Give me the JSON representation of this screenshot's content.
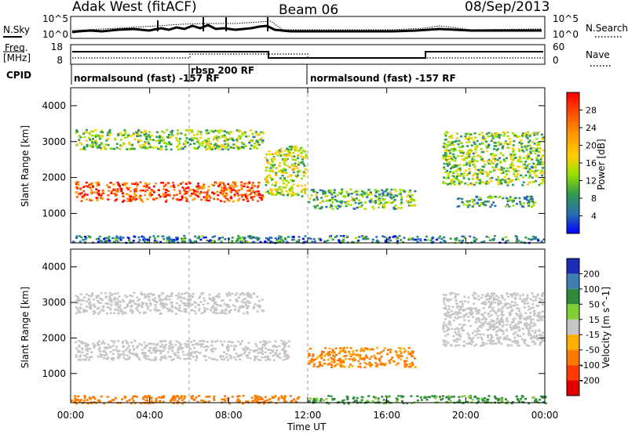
{
  "header": {
    "radar": "Adak West (fitACF)",
    "beam": "Beam 06",
    "date": "08/Sep/2013"
  },
  "nsky_panel": {
    "left_label": "N.Sky",
    "right_label": "N.Search",
    "left_ticks": [
      "10^5",
      "10^0"
    ],
    "right_ticks": [
      "10^5",
      "10^0"
    ]
  },
  "freq_panel": {
    "left_label_1": "Freq.",
    "left_label_2": "[MHz]",
    "right_label": "Nave",
    "left_ticks": [
      "18",
      "8"
    ],
    "right_ticks": [
      "60",
      "0"
    ]
  },
  "cpid_panel": {
    "label": "CPID",
    "segments": [
      {
        "text": "normalsound (fast) -157 RF"
      },
      {
        "text": "rbsp 200 RF"
      },
      {
        "text": "normalsound (fast) -157 RF"
      }
    ]
  },
  "axes": {
    "xlabel": "Time UT",
    "ylabel": "Slant Range [km]",
    "xticks": [
      "00:00",
      "04:00",
      "08:00",
      "12:00",
      "16:00",
      "20:00",
      "00:00"
    ],
    "yticks": [
      "1000",
      "2000",
      "3000",
      "4000"
    ]
  },
  "power_bar": {
    "label": "Power [dB]",
    "ticks": [
      "28",
      "24",
      "20",
      "16",
      "12",
      "8",
      "4"
    ],
    "colors": [
      "#ff0000",
      "#ff5000",
      "#ff9a00",
      "#ffcd00",
      "#9be000",
      "#2e9c4e",
      "#2a6fb0",
      "#0000ff"
    ]
  },
  "velocity_bar": {
    "label": "Velocity [m s^-1]",
    "ticks": [
      "200",
      "100",
      "50",
      "15",
      "-15",
      "-50",
      "-100",
      "-200"
    ],
    "colors": [
      "#1c2bb8",
      "#3f7fb4",
      "#2f8a3b",
      "#7fcf35",
      "#c6c6c6",
      "#ffae00",
      "#ff7a00",
      "#ff3a00",
      "#e00000"
    ]
  },
  "chart_data": [
    {
      "type": "heatmap",
      "title": "Power",
      "xlabel": "Time UT",
      "ylabel": "Slant Range [km]",
      "xlim": [
        "00:00",
        "24:00"
      ],
      "ylim": [
        180,
        4500
      ],
      "colorbar_label": "Power [dB]",
      "regions": [
        {
          "t_start": 0.2,
          "t_end": 9.7,
          "range_low": 1350,
          "range_high": 1900,
          "power_db": 26
        },
        {
          "t_start": 0.2,
          "t_end": 9.7,
          "range_low": 2800,
          "range_high": 3350,
          "power_db": 12
        },
        {
          "t_start": 9.8,
          "t_end": 11.9,
          "range_low": 1500,
          "range_high": 2900,
          "power_db": 14
        },
        {
          "t_start": 12.0,
          "t_end": 17.4,
          "range_low": 1150,
          "range_high": 1700,
          "power_db": 10
        },
        {
          "t_start": 18.8,
          "t_end": 23.9,
          "range_low": 1800,
          "range_high": 3300,
          "power_db": 12
        },
        {
          "t_start": 19.5,
          "t_end": 23.5,
          "range_low": 1200,
          "range_high": 1500,
          "power_db": 8
        },
        {
          "t_start": 0.0,
          "t_end": 24.0,
          "range_low": 200,
          "range_high": 400,
          "power_db": 6
        }
      ]
    },
    {
      "type": "heatmap",
      "title": "Velocity",
      "xlabel": "Time UT",
      "ylabel": "Slant Range [km]",
      "xlim": [
        "00:00",
        "24:00"
      ],
      "ylim": [
        180,
        4500
      ],
      "colorbar_label": "Velocity [m s^-1]",
      "regions": [
        {
          "t_start": 0.2,
          "t_end": 11.0,
          "range_low": 1400,
          "range_high": 1950,
          "velocity": 0
        },
        {
          "t_start": 0.2,
          "t_end": 9.7,
          "range_low": 2700,
          "range_high": 3300,
          "velocity": 0
        },
        {
          "t_start": 12.0,
          "t_end": 17.4,
          "range_low": 1200,
          "range_high": 1750,
          "velocity": -40
        },
        {
          "t_start": 18.8,
          "t_end": 23.9,
          "range_low": 1800,
          "range_high": 3300,
          "velocity": 0
        },
        {
          "t_start": 0.0,
          "t_end": 11.5,
          "range_low": 180,
          "range_high": 400,
          "velocity": -60
        },
        {
          "t_start": 12.0,
          "t_end": 24.0,
          "range_low": 180,
          "range_high": 400,
          "velocity": 40
        }
      ]
    }
  ]
}
